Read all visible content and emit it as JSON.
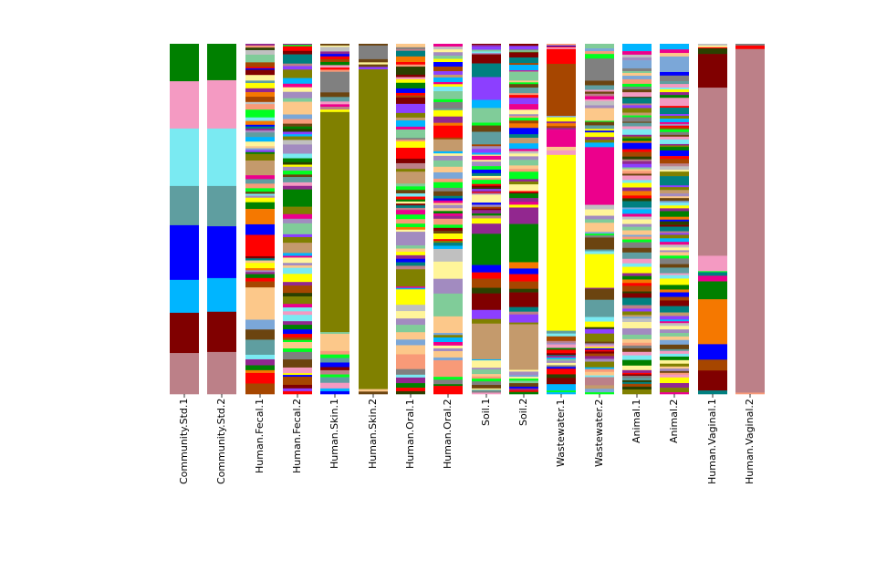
{
  "chart_data": {
    "type": "bar",
    "stacked": true,
    "title": "",
    "xlabel": "",
    "ylabel": "",
    "ylim": [
      0,
      100
    ],
    "grid": false,
    "legend": "none",
    "segment_order": "top-to-bottom",
    "palette": {
      "G": "#008000",
      "P": "#f49ac2",
      "C": "#7aeaf2",
      "T": "#5f9ea0",
      "B": "#0000ff",
      "S": "#00b5ff",
      "M": "#800000",
      "R": "#bc8088",
      "O": "#808000",
      "Y": "#ffff00",
      "Rd": "#ff0000",
      "Br": "#a64600",
      "Dk": "#6b4410",
      "Mg": "#ec008c",
      "Pu": "#92278f",
      "Vi": "#8c3fff",
      "Pe": "#fcc88a",
      "Tn": "#c49a6c",
      "Gy": "#808080",
      "Lg": "#80cc99",
      "Lv": "#a28bc0",
      "Lb": "#7ba7d8",
      "Sa": "#f89a78",
      "Or": "#f57800",
      "Lm": "#00ff20",
      "Tl": "#008080",
      "Ly": "#fff59a",
      "Sv": "#c0c0c0",
      "Dg": "#2b4000"
    },
    "categories": [
      "Community.Std.1",
      "Community.Std.2",
      "Human.Fecal.1",
      "Human.Fecal.2",
      "Human.Skin.1",
      "Human.Skin.2",
      "Human.Oral.1",
      "Human.Oral.2",
      "Soil.1",
      "Soil.2",
      "Wastewater.1",
      "Wastewater.2",
      "Animal.1",
      "Animal.2",
      "Human.Vaginal.1",
      "Human.Vaginal.2"
    ],
    "series": [
      "G:10.7 P:13.5 C:16.4 T:11.2 B:15.6 S:9.4 M:11.5 R:11.7",
      "G:10.4 P:13.8 C:16.4 T:11.5 B:14.8 S:9.6 M:11.5 R:12.0",
      "Pu:0.5 Sa:0.6 Dg:0.7 Sv:1.3 Lg:2.2 Br:1.3 Rd:0.4 B:0.4 M:0.5 M:1.0 Ly:1.6 T:0.7 Y:1.5 Pu:1.1 Or:1.3 Br:1.5 Sv:0.6 Sa:1.6 Lm:2.2 C:1.0 Or:1.1 B:0.5 Tl:0.6 Pu:0.5 Lv:0.6 T:1.3 S:1.3 Ly:1.3 Pe:0.6 Lb:0.5 Vi:0.6 G:0.5 O:1.9 Tn:4.2 Mg:1.1 T:1.3 Sa:1.3 Lm:1.0 Dk:0.6 C:0.5 Lv:0.6 Y:1.3 G:1.9 Or:4.4 B:3.0 Rd:6.1 M:0.6 Tl:0.6 Pe:0.7 Y:1.5 Or:0.6 Lv:0.5 Pu:0.6 G:1.1 Rd:1.0 Br:1.7 Pe:9.2 Lb:2.8 Dk:2.9 T:4.3 C:1.3 Pu:1.7 G:1.4 Or:0.8 Rd:3.0 Br:3.0",
      "Pu:0.3 Lm:0.4 Rd:1.3 M:1.0 Tl:2.6 R:0.7 Vi:1.0 O:2.4 S:1.6 Mg:1.0 Ly:1.3 Lv:1.8 Lg:1.0 Pe:3.6 Lb:1.3 Sa:1.3 Dk:0.8 G:0.7 Dg:0.8 Vi:0.7 S:0.6 O:1.0 Sv:1.3 Lv:2.6 C:1.3 G:1.1 Dg:0.7 Y:0.6 Lv:1.1 Lm:1.1 Dk:0.7 T:1.5 P:1.0 Pu:1.0 G:4.9 O:2.1 Mg:1.3 Lv:1.3 Lg:3.1 Vi:0.8 O:1.6 Tn:2.9 S:0.8 Mg:0.5 Ly:1.5 Lv:0.7 Pe:0.7 C:0.7 C:1.0 Y:2.3 Pu:1.0 Br:2.1 Dg:1.0 O:2.1 Mg:1.0 C:1.1 P:1.0 C:1.8 Pu:1.0 G:1.3 B:1.3 Rd:1.0 Br:0.7 Lm:0.6 Pe:1.8 Lm:1.0 Gy:2.1 Dk:2.3 P:1.6 Y:0.5 B:0.5 Br:2.3 M:1.0 Vi:0.8 Rd:0.8",
      "Dk:0.5 Ly:0.4 Sv:0.5 Sv:0.8 Pu:0.7 B:0.7 Rd:0.8 Br:0.8 G:0.9 P:0.7 Rd:0.6 Sa:0.6 Gy:5.9 Dk:1.3 T:1.3 P:0.8 Mg:0.7 R:0.8 Y:0.7 O:62.9 Lg:0.5 Pe:4.9 Sa:1.0 Lm:1.0 T:1.3 B:1.3 M:0.9 R:1.2 Lm:0.8 T:1.6 P:1.6 S:0.8 B:0.8",
      "Dk:0.5 Gy:3.9 Dk:0.9 Ly:0.6 Dk:0.7 Vi:0.7 O:91.3 Pe:0.7 Dk:0.7",
      "Pe:1.0 Gy:0.5 R:0.5 Tl:1.6 Or:1.6 Rd:0.7 Sa:0.6 Dg:2.3 M:0.7 P:0.6 Y:1.0 G:1.6 B:1.3 Rd:0.7 Br:0.6 M:1.8 Vi:2.6 O:1.3 Tn:0.8 S:1.8 Mg:0.8 Lg:0.8 Lg:1.6 Gy:0.5 Sa:0.5 Y:1.8 Rd:3.1 M:1.3 R:1.6 O:0.8 Tn:3.4 Lg:0.8 Lm:1.0 Dk:1.0 C:0.9 Rd:0.8 G:0.6 Ly:0.6 M:0.5 Tl:0.7 R:0.6 Mg:1.3 Lm:1.3 Sa:1.3 Lm:1.0 Or:0.7 Ly:0.6 Lv:3.9 Lg:0.9 Pe:0.9 Y:1.0 Pu:1.0 B:1.0 Tl:1.0 R:1.0 O:4.9 Mg:0.4 S:0.4 Y:4.4 Sv:1.8 Ly:2.1 Lv:1.8 Lg:2.1 Pe:2.1 Lb:1.6 Pe:2.6 Sa:4.2 Gy:1.6 C:0.8 Pu:1.6 G:1.3 Rd:1.0 Dg:0.8",
      "Mg:0.8 Sv:0.8 Ly:0.8 Lv:1.0 Lg:0.9 Y:0.9 B:1.3 Br:1.3 Vi:1.0 Tn:0.8 S:1.3 Mg:0.6 Y:0.7 C:1.3 Lg:2.3 Lm:0.8 Gy:1.8 T:0.5 Y:1.8 Pu:1.8 Or:0.8 Rd:3.4 Br:0.5 Tn:3.4 S:0.6 Ly:0.7 Lv:1.3 Lg:1.8 Pe:1.6 Lb:1.8 Sa:1.0 Lm:1.6 Gy:1.0 Dk:1.3 Tl:0.7 B:0.6 Mg:0.7 Pe:0.6 Lv:0.9 Pe:0.8 G:0.7 Mg:0.7 Pu:0.8 Sa:1.7 Lm:0.9 M:0.8 Dk:0.8 Y:1.6 Rd:0.5 O:0.5 Tl:0.9 S:0.9 Sv:3.6 Ly:4.9 Lv:4.2 Lg:6.5 Pe:4.7 Lb:0.6 O:0.7 S:1.3 Mg:1.0 Ly:0.8 Lv:0.8 Pe:1.8 Lb:0.8 Sa:4.7 Lm:0.8 Gy:1.3 G:0.5 Rd:2.3",
      "M:0.3 Pu:0.4 Vi:1.0 Lg:0.5 C:0.4 Lv:0.4 M:2.6 Tl:3.9 Vi:6.5 S:2.3 Lg:4.2 Lm:0.8 Dk:1.8 T:3.6 Br:0.5 Lv:0.8 Vi:1.1 S:0.5 Pe:0.4 Mg:1.1 Ly:0.5 Lv:0.5 Lv:0.8 Lm:1.0 B:1.0 Tl:0.8 Ly:0.6 Sa:0.5 Lm:1.2 Rd:0.5 M:0.5 Dg:0.4 Vi:0.5 Pu:0.4 Rd:0.3 Lv:0.4 Ly:2.3 B:0.6 Lv:0.6 Br:0.5 M:0.4 Pu:1.0 G:0.6 R:0.8 Y:1.5 Pu:2.9 G:8.9 B:2.1 Rd:1.8 Br:2.6 Dg:1.6 M:4.7 Vi:2.6 O:1.3 Tn:10.2 S:0.3 Ly:2.1 Lv:0.5 Lg:1.3 Pe:0.7 Sa:0.6 Lm:0.8 Gy:1.0 Dk:1.0 Ly:0.4 T:0.4 Gy:0.4 P:0.4",
      "M:0.6 Vi:1.0 Gy:0.3 Lg:0.4 Dk:0.3 M:1.3 Tl:1.6 Br:0.5 S:1.6 Mg:0.3 Lg:2.6 Pe:0.5 Lm:0.5 Dk:1.0 T:1.6 Sa:0.5 Rd:0.8 Vi:1.8 Mg:1.6 Ly:1.3 Lv:0.5 Sa:0.5 Lm:0.8 Br:0.8 Or:1.3 B:1.8 Tl:1.0 Tn:1.6 S:1.6 Mg:0.6 Sv:0.7 Ly:0.8 Lv:1.0 Lg:1.6 Pe:1.0 Sa:0.8 Lm:2.1 Pu:0.7 O:0.8 Ly:1.9 Rd:0.4 M:0.3 G:1.3 Pu:1.1 Mg:0.8 Y:0.8 Pu:4.7 G:10.9 Or:1.8 B:1.6 Rd:2.1 Br:2.1 Dg:1.0 M:4.2 Tl:1.3 R:0.8 Vi:2.3 O:0.5 Tn:13.0 Ly:0.5 Lv:1.0 Lb:0.5 Ly:0.5 Lm:0.6 Lg:0.7 Dk:1.0 B:0.5 Pu:0.5 Rd:0.5 G:0.6",
      "Sa:0.5 B:0.25 Rd:0.25 P:0.5 Rd:4.2 Br:14.8 Lb:0.4 Y:1.2 Pu:0.5 Or:0.8 Br:0.5 Pu:0.5 Mg:4.9 Pe:1.0 P:1.3 Y:50.0 T:0.8 C:0.8 Br:1.3 R:0.5 Lv:0.5 P:1.0 G:0.5 Rd:1.0 M:0.5 Tl:0.35 Mg:0.35 S:0.45 Lg:0.45 Lv:0.65 Ly:0.65 Gy:0.5 B:0.5 Rd:1.6 Dg:1.0 M:1.8 S:1.8 Lm:0.5 S:0.5",
      "Lg:1.3 Lb:0.8 Sa:0.8 Lm:1.3 Gy:6.3 Dk:1.3 T:1.3 P:0.5 Dk:0.6 R:0.7 Mg:0.9 P:0.5 Sv:1.2 Lv:0.8 Pe:3.6 Lm:0.3 Dk:1.0 T:1.0 Y:0.5 B:0.5 Y:1.3 Pu:0.8 O:0.8 S:1.3 Mg:16.4 Sv:1.3 Ly:1.8 Lv:1.0 Lg:1.0 Pe:2.6 Lb:0.5 Lm:0.5 Gy:0.6 Dk:3.4 T:0.5 C:0.8 Y:9.6 Pu:0.3 Dk:3.1 T:4.9 C:1.3 Y:1.6 Dg:0.5 Vi:1.3 O:2.3 Dk:0.5 Lv:0.5 P:0.5 Y:0.4 B:0.4 Rd:0.5 M:0.6 Br:0.7 Pu:0.8 Lv:0.8 O:1.6 S:0.5 Sa:0.8 Pe:1.0 C:0.5 R:2.3 Tn:1.0 Lb:1.0 Lm:0.5",
      "S:2.1 Mg:1.0 Sv:0.8 Lv:0.8 Lb:2.3 Gy:0.8 Lg:0.5 Pe:0.8 Lb:1.0 Sa:1.3 Lm:0.8 Gy:0.8 Dk:0.8 P:1.3 Dg:0.3 Tl:1.6 R:0.5 Vi:0.8 O:1.3 Tn:0.8 Lm:0.5 Gy:1.3 Dk:0.3 T:1.0 P:0.8 C:1.6 Pu:0.5 O:0.5 G:0.8 Or:0.5 B:1.8 Rd:0.8 Br:1.3 Dg:0.8 R:0.5 Pu:0.8 Vi:1.0 Lg:0.5 Pe:0.5 Sa:0.8 Dk:0.5 P:1.3 C:0.8 Y:1.3 Pu:1.0 Or:1.3 Rd:0.8 Dg:0.8 Tl:1.8 Lb:0.5 S:1.3 Mg:0.8 Sv:0.8 Ly:1.3 Lv:0.8 Lg:1.0 Pe:1.3 Lb:0.5 Sa:0.8 Lm:0.8 Gy:1.6 Dk:1.3 T:1.8 P:1.3 C:1.0 Y:1.8 Pu:0.8 G:1.0 Or:1.0 Rd:0.8 Br:1.6 Dg:0.5 M:1.3 Tl:2.1 R:1.0 Vi:0.8 O:1.0 Tn:0.5 Lb:0.5 Sv:1.0 Ly:1.8 Lv:1.8 Lg:1.3 Pe:1.0 Sa:0.8 Gy:0.8 Dk:1.0 P:1.0 C:1.3 G:1.6 Ly:1.3 Pu:0.8 Rd:0.4 M:0.4 Gy:0.6 T:0.7 Dg:0.5 Tl:0.5 Br:0.8 Dg:0.8 O:1.3",
      "S:1.6 Mg:1.0 Pe:1.0 Lb:4.4 B:1.0 Gy:1.6 T:0.8 P:1.0 C:0.5 Y:0.8 Pu:0.8 G:0.8 P:2.3 Rd:0.5 Tl:1.8 Vi:0.5 O:0.8 S:1.0 Mg:0.5 Lv:0.5 Rd:0.5 Br:0.5 Lm:0.8 Gy:0.8 Dk:0.5 P:0.8 C:1.3 Pu:0.4 O:0.4 G:1.0 B:1.6 Rd:0.8 Br:1.3 R:0.8 Sv:1.0 Ly:0.5 O:1.3 Tl:2.6 Vi:0.5 O:0.8 Tn:1.0 Lv:0.8 Pe:0.5 Dk:0.8 Lb:0.5 C:0.8 Y:0.8 Pu:0.8 G:1.6 Or:0.8 B:0.5 Dg:1.0 M:0.5 Tl:1.3 R:0.5 Vi:0.5 O:1.0 S:1.0 Mg:0.8 Sv:0.8 Ly:0.8 Lv:0.5 Pe:1.0 Lm:0.8 Gy:1.6 Dk:1.0 T:1.6 P:0.5 C:1.0 Y:1.8 G:1.3 Or:0.8 B:1.3 Br:1.0 M:1.6 Tl:1.8 Tn:1.0 Vi:1.0 S:0.5 Mg:0.5 Sv:0.8 Ly:1.0 Lv:1.0 Lg:1.0 Pe:1.0 Lb:1.3 Dk:1.3 T:0.5 P:0.8 C:0.8 G:1.0 Ly:1.0 O:0.8 Pe:0.6 Lv:0.7 Dk:0.5 Sa:0.5 P:0.8 Y:1.6 Pu:1.3 O:1.3 Mg:0.5",
      "Sv:0.5 Ly:0.5 Rd:0.3 Dg:1.6 M:9.6 R:47.9 P:4.4 Lm:0.3 Tl:1.0 Mg:1.6 G:5.1 Or:12.8 B:4.4 Br:3.1 M:5.7 Tl:1.0",
      "Gy:0.5 Rd:1.0 R:98.1 Sa:0.4"
    ]
  }
}
